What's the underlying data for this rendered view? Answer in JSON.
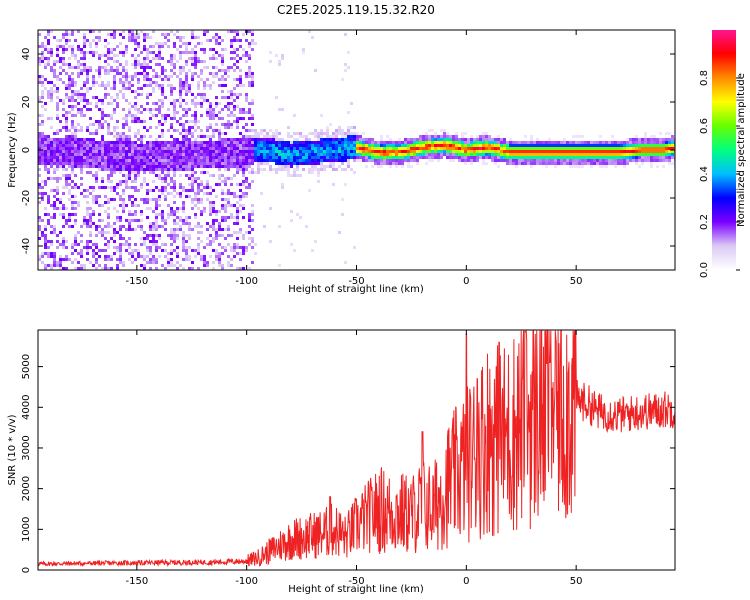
{
  "title": "C2E5.2025.119.15.32.R20",
  "chart_data": [
    {
      "type": "heatmap",
      "xlabel": "Height of straight line (km)",
      "ylabel": "Frequency (Hz)",
      "xlim": [
        -195,
        95
      ],
      "ylim": [
        -50,
        50
      ],
      "x_ticks": [
        -150,
        -100,
        -50,
        0,
        50
      ],
      "y_ticks": [
        -40,
        -20,
        0,
        20,
        40
      ],
      "colorbar": {
        "label": "Normalized spectral amplitude",
        "range": [
          0,
          1
        ],
        "ticks": [
          "0.0",
          "0.2",
          "0.4",
          "0.6",
          "0.8"
        ],
        "colors": [
          "#ffffff",
          "#dccaf5",
          "#7b00ff",
          "#0000ff",
          "#00bfff",
          "#00ff7f",
          "#66ff00",
          "#ffff00",
          "#ff8c00",
          "#ff0000",
          "#ff1493"
        ]
      },
      "ridge": {
        "x": [
          -195,
          -150,
          -120,
          -100,
          -90,
          -80,
          -70,
          -60,
          -50,
          -40,
          -30,
          -20,
          -10,
          0,
          10,
          20,
          30,
          40,
          50,
          60,
          70,
          80,
          90,
          95
        ],
        "frequency": [
          0,
          -3,
          -2,
          -1,
          0,
          -2,
          -1,
          0,
          1,
          -1,
          -1,
          1,
          2,
          0,
          1,
          -1,
          -1,
          -1,
          -1,
          -1,
          -1,
          0,
          0,
          1
        ]
      }
    },
    {
      "type": "line",
      "xlabel": "Height of straight line (km)",
      "ylabel": "SNR (10 * v/v)",
      "xlim": [
        -195,
        95
      ],
      "ylim": [
        0,
        5900
      ],
      "x_ticks": [
        -150,
        -100,
        -50,
        0,
        50
      ],
      "y_ticks": [
        0,
        1000,
        2000,
        3000,
        4000,
        5000
      ],
      "color": "#ee2222",
      "series": [
        {
          "x": [
            -195,
            -180,
            -160,
            -140,
            -120,
            -110,
            -100,
            -95,
            -90,
            -85,
            -80,
            -75,
            -70,
            -65,
            -60,
            -55,
            -50,
            -45,
            -40,
            -35,
            -30,
            -25,
            -20,
            -15,
            -10,
            -5,
            0,
            5,
            10,
            15,
            20,
            25,
            30,
            35,
            40,
            45,
            50,
            55,
            60,
            65,
            70,
            75,
            80,
            85,
            90,
            95
          ],
          "values": [
            150,
            160,
            170,
            180,
            190,
            200,
            220,
            300,
            450,
            600,
            750,
            800,
            850,
            900,
            1000,
            800,
            1100,
            1300,
            1500,
            1400,
            1400,
            1350,
            1600,
            1500,
            2000,
            2300,
            2600,
            2900,
            3300,
            3200,
            3300,
            3700,
            3800,
            4100,
            4300,
            4000,
            4200,
            4100,
            3900,
            3850,
            3800,
            3850,
            3900,
            3900,
            3950,
            3950
          ],
          "spikes": [
            {
              "x": 0,
              "value": 5800
            },
            {
              "x": 15,
              "value": 5600
            },
            {
              "x": 27,
              "value": 5850
            },
            {
              "x": 38,
              "value": 5100
            },
            {
              "x": -20,
              "value": 3400
            },
            {
              "x": 5,
              "value": 4700
            },
            {
              "x": -62,
              "value": 1800
            }
          ]
        }
      ]
    }
  ]
}
